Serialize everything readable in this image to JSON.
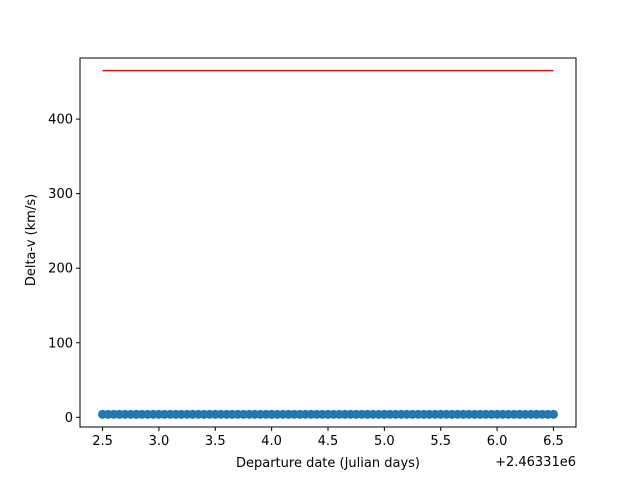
{
  "chart_data": {
    "type": "scatter",
    "xlabel": "Departure date (Julian days)",
    "ylabel": "Delta-v (km/s)",
    "x_offset_label": "+2.46331e6",
    "xlim": [
      2.3,
      6.7
    ],
    "ylim": [
      -13,
      482
    ],
    "x_ticks": [
      2.5,
      3.0,
      3.5,
      4.0,
      4.5,
      5.0,
      5.5,
      6.0,
      6.5
    ],
    "x_tick_labels": [
      "2.5",
      "3.0",
      "3.5",
      "4.0",
      "4.5",
      "5.0",
      "5.5",
      "6.0",
      "6.5"
    ],
    "y_ticks": [
      0,
      100,
      200,
      300,
      400
    ],
    "y_tick_labels": [
      "0",
      "100",
      "200",
      "300",
      "400"
    ],
    "grid": false,
    "series": [
      {
        "kind": "scatter",
        "color": "#1f77b4",
        "x_start": 2.5,
        "x_end": 6.5,
        "count": 81,
        "y": 4
      },
      {
        "kind": "line",
        "color": "#ff0000",
        "x": [
          2.5,
          6.5
        ],
        "y": [
          465,
          465
        ]
      }
    ]
  }
}
